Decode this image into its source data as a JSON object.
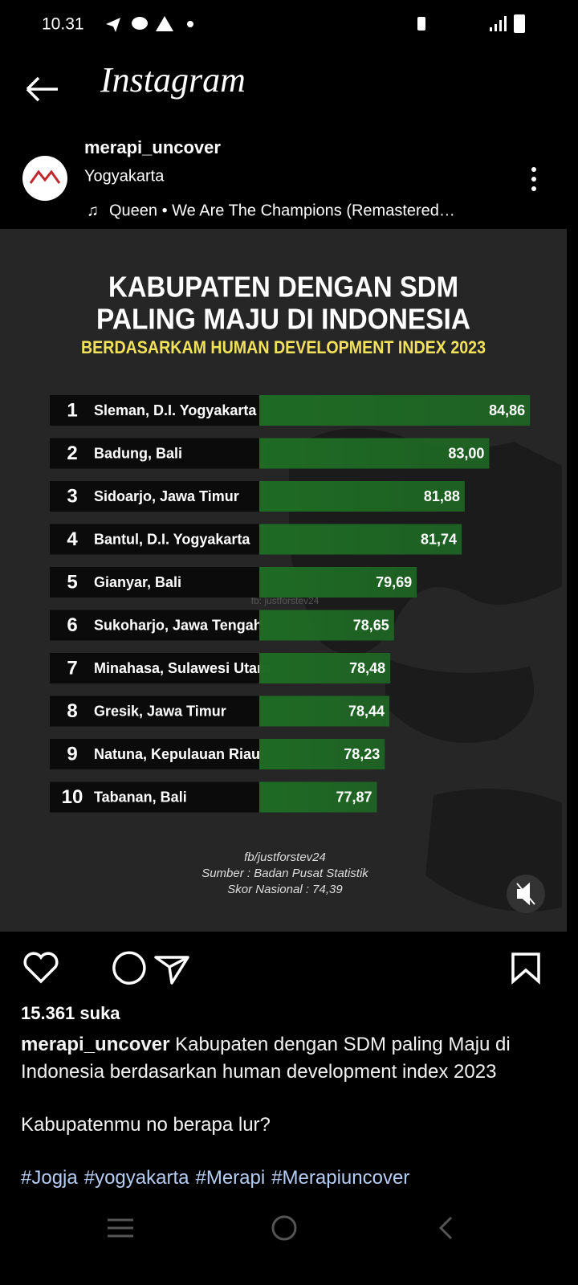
{
  "status_bar": {
    "time": "10.31"
  },
  "header": {
    "title": "Instagram"
  },
  "post": {
    "username": "merapi_uncover",
    "location": "Yogyakarta",
    "music": "Queen • We Are The Champions (Remastered…",
    "likes": "15.361 suka",
    "caption": "Kabupaten dengan SDM paling Maju di Indonesia berdasarkan human development index 2023",
    "question": "Kabupatenmu no berapa lur?",
    "hashtags": [
      "#Jogja",
      "#yogyakarta",
      "#Merapi",
      "#Merapiuncover"
    ]
  },
  "chart_data": {
    "type": "bar",
    "orientation": "horizontal",
    "title": [
      "KABUPATEN DENGAN SDM",
      "PALING MAJU DI INDONESIA"
    ],
    "subtitle": "BERDASARKAM HUMAN DEVELOPMENT INDEX 2023",
    "ranks": [
      1,
      2,
      3,
      4,
      5,
      6,
      7,
      8,
      9,
      10
    ],
    "categories": [
      "Sleman, D.I. Yogyakarta",
      "Badung, Bali",
      "Sidoarjo, Jawa Timur",
      "Bantul, D.I. Yogyakarta",
      "Gianyar, Bali",
      "Sukoharjo, Jawa Tengah",
      "Minahasa, Sulawesi Utara",
      "Gresik, Jawa Timur",
      "Natuna, Kepulauan Riau",
      "Tabanan, Bali"
    ],
    "values": [
      84.86,
      83.0,
      81.88,
      81.74,
      79.69,
      78.65,
      78.48,
      78.44,
      78.23,
      77.87
    ],
    "value_labels": [
      "84,86",
      "83,00",
      "81,88",
      "81,74",
      "79,69",
      "78,65",
      "78,48",
      "78,44",
      "78,23",
      "77,87"
    ],
    "xlim": [
      72.5,
      85
    ],
    "color": "#1e6b24",
    "watermark": "fb: justforstev24",
    "footer": [
      "fb/justforstev24",
      "Sumber : Badan Pusat Statistik",
      "Skor Nasional : 74,39"
    ]
  }
}
